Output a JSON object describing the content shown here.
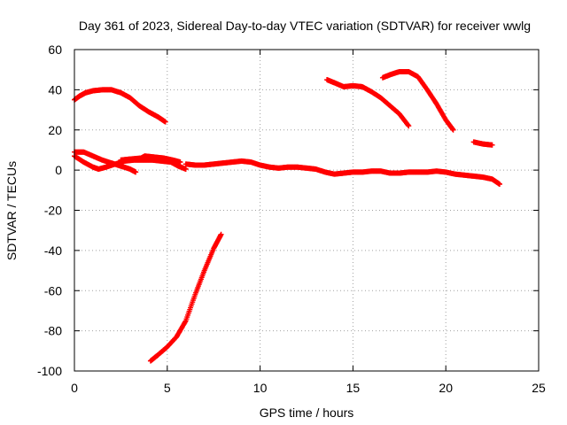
{
  "chart_data": {
    "type": "scatter",
    "title": "Day 361 of 2023, Sidereal Day-to-day VTEC variation (SDTVAR) for receiver wwlg",
    "xlabel": "GPS time / hours",
    "ylabel": "SDTVAR / TECUs",
    "xlim": [
      0,
      25
    ],
    "ylim": [
      -100,
      60
    ],
    "xticks": [
      0,
      5,
      10,
      15,
      20,
      25
    ],
    "yticks": [
      -100,
      -80,
      -60,
      -40,
      -20,
      0,
      20,
      40,
      60
    ],
    "grid": true,
    "marker": "plus",
    "color": "#ff0000",
    "series": [
      {
        "name": "arc-1",
        "points": [
          [
            0.0,
            35
          ],
          [
            0.3,
            37
          ],
          [
            0.6,
            38.5
          ],
          [
            1.0,
            39.5
          ],
          [
            1.5,
            40
          ],
          [
            2.0,
            40
          ],
          [
            2.5,
            38.5
          ],
          [
            3.0,
            36
          ],
          [
            3.5,
            32
          ],
          [
            4.0,
            29
          ],
          [
            4.5,
            26.5
          ],
          [
            4.9,
            24
          ]
        ]
      },
      {
        "name": "arc-2",
        "points": [
          [
            4.1,
            -95
          ],
          [
            4.5,
            -92
          ],
          [
            5.0,
            -88
          ],
          [
            5.5,
            -83
          ],
          [
            6.0,
            -75
          ],
          [
            6.5,
            -62
          ],
          [
            7.0,
            -50
          ],
          [
            7.5,
            -39
          ],
          [
            7.9,
            -32
          ]
        ]
      },
      {
        "name": "arc-3",
        "points": [
          [
            13.6,
            45
          ],
          [
            14.0,
            43.5
          ],
          [
            14.5,
            41.5
          ],
          [
            15.0,
            42
          ],
          [
            15.5,
            41.5
          ],
          [
            16.0,
            39
          ],
          [
            16.5,
            36
          ],
          [
            17.0,
            32
          ],
          [
            17.5,
            28
          ],
          [
            18.0,
            22
          ]
        ]
      },
      {
        "name": "arc-4",
        "points": [
          [
            16.6,
            46
          ],
          [
            17.0,
            47.5
          ],
          [
            17.5,
            49
          ],
          [
            18.0,
            49
          ],
          [
            18.5,
            46.5
          ],
          [
            19.0,
            40
          ],
          [
            19.5,
            33
          ],
          [
            20.0,
            25
          ],
          [
            20.4,
            20
          ]
        ]
      },
      {
        "name": "arc-5",
        "points": [
          [
            21.5,
            14
          ],
          [
            22.0,
            13
          ],
          [
            22.5,
            12.5
          ]
        ]
      },
      {
        "name": "arc-6",
        "points": [
          [
            0.0,
            9
          ],
          [
            0.5,
            9
          ],
          [
            1.0,
            7
          ],
          [
            1.5,
            5
          ],
          [
            2.0,
            3.5
          ],
          [
            2.5,
            2
          ],
          [
            3.0,
            0.5
          ],
          [
            3.3,
            -1
          ]
        ]
      },
      {
        "name": "arc-7",
        "points": [
          [
            0.0,
            7
          ],
          [
            0.5,
            4
          ],
          [
            1.0,
            1.5
          ],
          [
            1.3,
            0.5
          ],
          [
            1.7,
            1.5
          ],
          [
            2.2,
            3
          ],
          [
            2.7,
            4.5
          ],
          [
            3.2,
            5
          ],
          [
            3.7,
            5
          ],
          [
            4.2,
            5
          ],
          [
            4.7,
            4.5
          ],
          [
            5.2,
            4
          ],
          [
            5.6,
            2
          ],
          [
            6.0,
            0.5
          ]
        ]
      },
      {
        "name": "arc-8",
        "points": [
          [
            2.5,
            5
          ],
          [
            3.0,
            5.5
          ],
          [
            3.6,
            6
          ],
          [
            3.8,
            7
          ],
          [
            4.3,
            6.5
          ],
          [
            4.8,
            6
          ],
          [
            5.3,
            5
          ],
          [
            5.7,
            4
          ]
        ]
      },
      {
        "name": "arc-9",
        "points": [
          [
            6.0,
            3
          ],
          [
            6.5,
            2.5
          ],
          [
            7.0,
            2.5
          ],
          [
            7.5,
            3
          ],
          [
            8.0,
            3.5
          ],
          [
            8.5,
            4
          ],
          [
            9.0,
            4.5
          ],
          [
            9.5,
            4
          ],
          [
            10.0,
            2.5
          ],
          [
            10.5,
            1.5
          ],
          [
            11.0,
            1
          ],
          [
            11.5,
            1.5
          ],
          [
            12.0,
            1.5
          ],
          [
            12.5,
            1
          ],
          [
            13.0,
            0.5
          ],
          [
            13.5,
            -1
          ],
          [
            14.0,
            -2
          ],
          [
            14.5,
            -1.5
          ],
          [
            15.0,
            -1
          ],
          [
            15.5,
            -1
          ],
          [
            16.0,
            -0.5
          ],
          [
            16.5,
            -0.5
          ],
          [
            17.0,
            -1.5
          ],
          [
            17.5,
            -1.5
          ],
          [
            18.0,
            -1
          ],
          [
            18.5,
            -1
          ],
          [
            19.0,
            -1
          ],
          [
            19.5,
            -0.5
          ],
          [
            20.0,
            -1
          ],
          [
            20.5,
            -2
          ],
          [
            21.0,
            -2.5
          ],
          [
            21.5,
            -3
          ],
          [
            22.0,
            -3.5
          ],
          [
            22.5,
            -4.5
          ],
          [
            22.9,
            -7
          ]
        ]
      }
    ]
  }
}
